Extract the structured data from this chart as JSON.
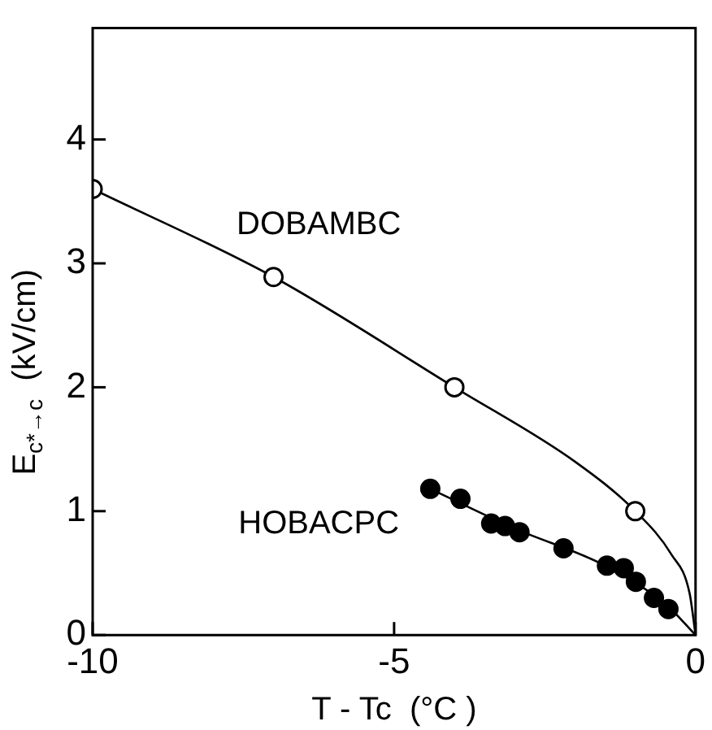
{
  "chart_data": {
    "type": "scatter",
    "xlabel": "T - Tc  (°C )",
    "ylabel": "E$_{c*→c}$  (kV/cm)",
    "xlim": [
      -10,
      0
    ],
    "ylim": [
      0,
      4.9
    ],
    "xticks": [
      -10,
      -5,
      0
    ],
    "yticks": [
      0,
      1,
      2,
      3,
      4
    ],
    "grid": false,
    "legend": false,
    "series": [
      {
        "name": "DOBAMBC",
        "color": "#000000",
        "marker": "circle",
        "x": [
          -10,
          -7,
          -4,
          -1
        ],
        "values": [
          3.6,
          2.89,
          2.0,
          1.0
        ]
      },
      {
        "name": "HOBACPC",
        "color": "#000000",
        "marker": "circle",
        "x": [
          -4.4,
          -3.9,
          -3.39,
          -3.16,
          -2.92,
          -2.19,
          -1.47,
          -1.19,
          -0.99,
          -0.69,
          -0.45
        ],
        "values": [
          1.18,
          1.1,
          0.9,
          0.88,
          0.83,
          0.7,
          0.56,
          0.54,
          0.43,
          0.3,
          0.21
        ]
      },
      {
        "type": "line",
        "color": "#000000",
        "marker": "none",
        "x": [
          -10,
          -7,
          -4,
          -2,
          -1,
          -0.4,
          -0.1,
          0
        ],
        "values": [
          3.6,
          2.89,
          2.0,
          1.4,
          1.0,
          0.65,
          0.34,
          0
        ]
      },
      {
        "type": "line",
        "color": "#000000",
        "marker": "none",
        "x": [
          -4.4,
          -3,
          -1.5,
          -0.5,
          0
        ],
        "values": [
          1.18,
          0.86,
          0.56,
          0.25,
          0
        ]
      }
    ]
  }
}
